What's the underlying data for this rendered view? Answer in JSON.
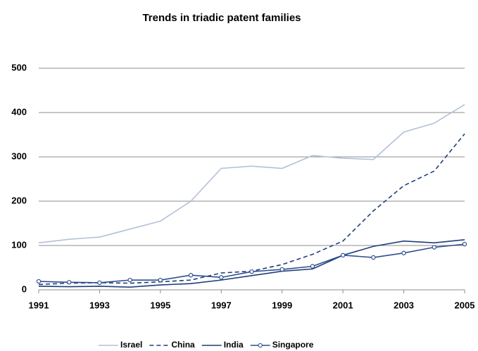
{
  "chart_data": {
    "type": "line",
    "title": "Trends in triadic patent families",
    "x": [
      1991,
      1992,
      1993,
      1994,
      1995,
      1996,
      1997,
      1998,
      1999,
      2000,
      2001,
      2002,
      2003,
      2004,
      2005
    ],
    "xlim": [
      1991,
      2005
    ],
    "xticks": [
      1991,
      1993,
      1995,
      1997,
      1999,
      2001,
      2003,
      2005
    ],
    "ylim": [
      0,
      500
    ],
    "yticks": [
      0,
      100,
      200,
      300,
      400,
      500
    ],
    "grid": true,
    "legend": "bottom",
    "series": [
      {
        "name": "Israel",
        "color": "#b4c0da",
        "dash": false,
        "marker": false,
        "values": [
          106,
          114,
          119,
          137,
          155,
          200,
          274,
          279,
          274,
          303,
          297,
          294,
          356,
          376,
          418
        ]
      },
      {
        "name": "China",
        "color": "#1f3d7a",
        "dash": true,
        "marker": false,
        "values": [
          12,
          15,
          16,
          15,
          18,
          22,
          38,
          42,
          57,
          80,
          110,
          178,
          235,
          268,
          352
        ]
      },
      {
        "name": "India",
        "color": "#1f3d7a",
        "dash": false,
        "marker": false,
        "values": [
          8,
          7,
          8,
          6,
          11,
          14,
          22,
          32,
          42,
          47,
          78,
          98,
          110,
          106,
          113
        ]
      },
      {
        "name": "Singapore",
        "color": "#2e4f8f",
        "dash": false,
        "marker": true,
        "values": [
          19,
          17,
          16,
          22,
          22,
          33,
          28,
          41,
          46,
          53,
          78,
          73,
          83,
          96,
          103
        ]
      }
    ]
  }
}
